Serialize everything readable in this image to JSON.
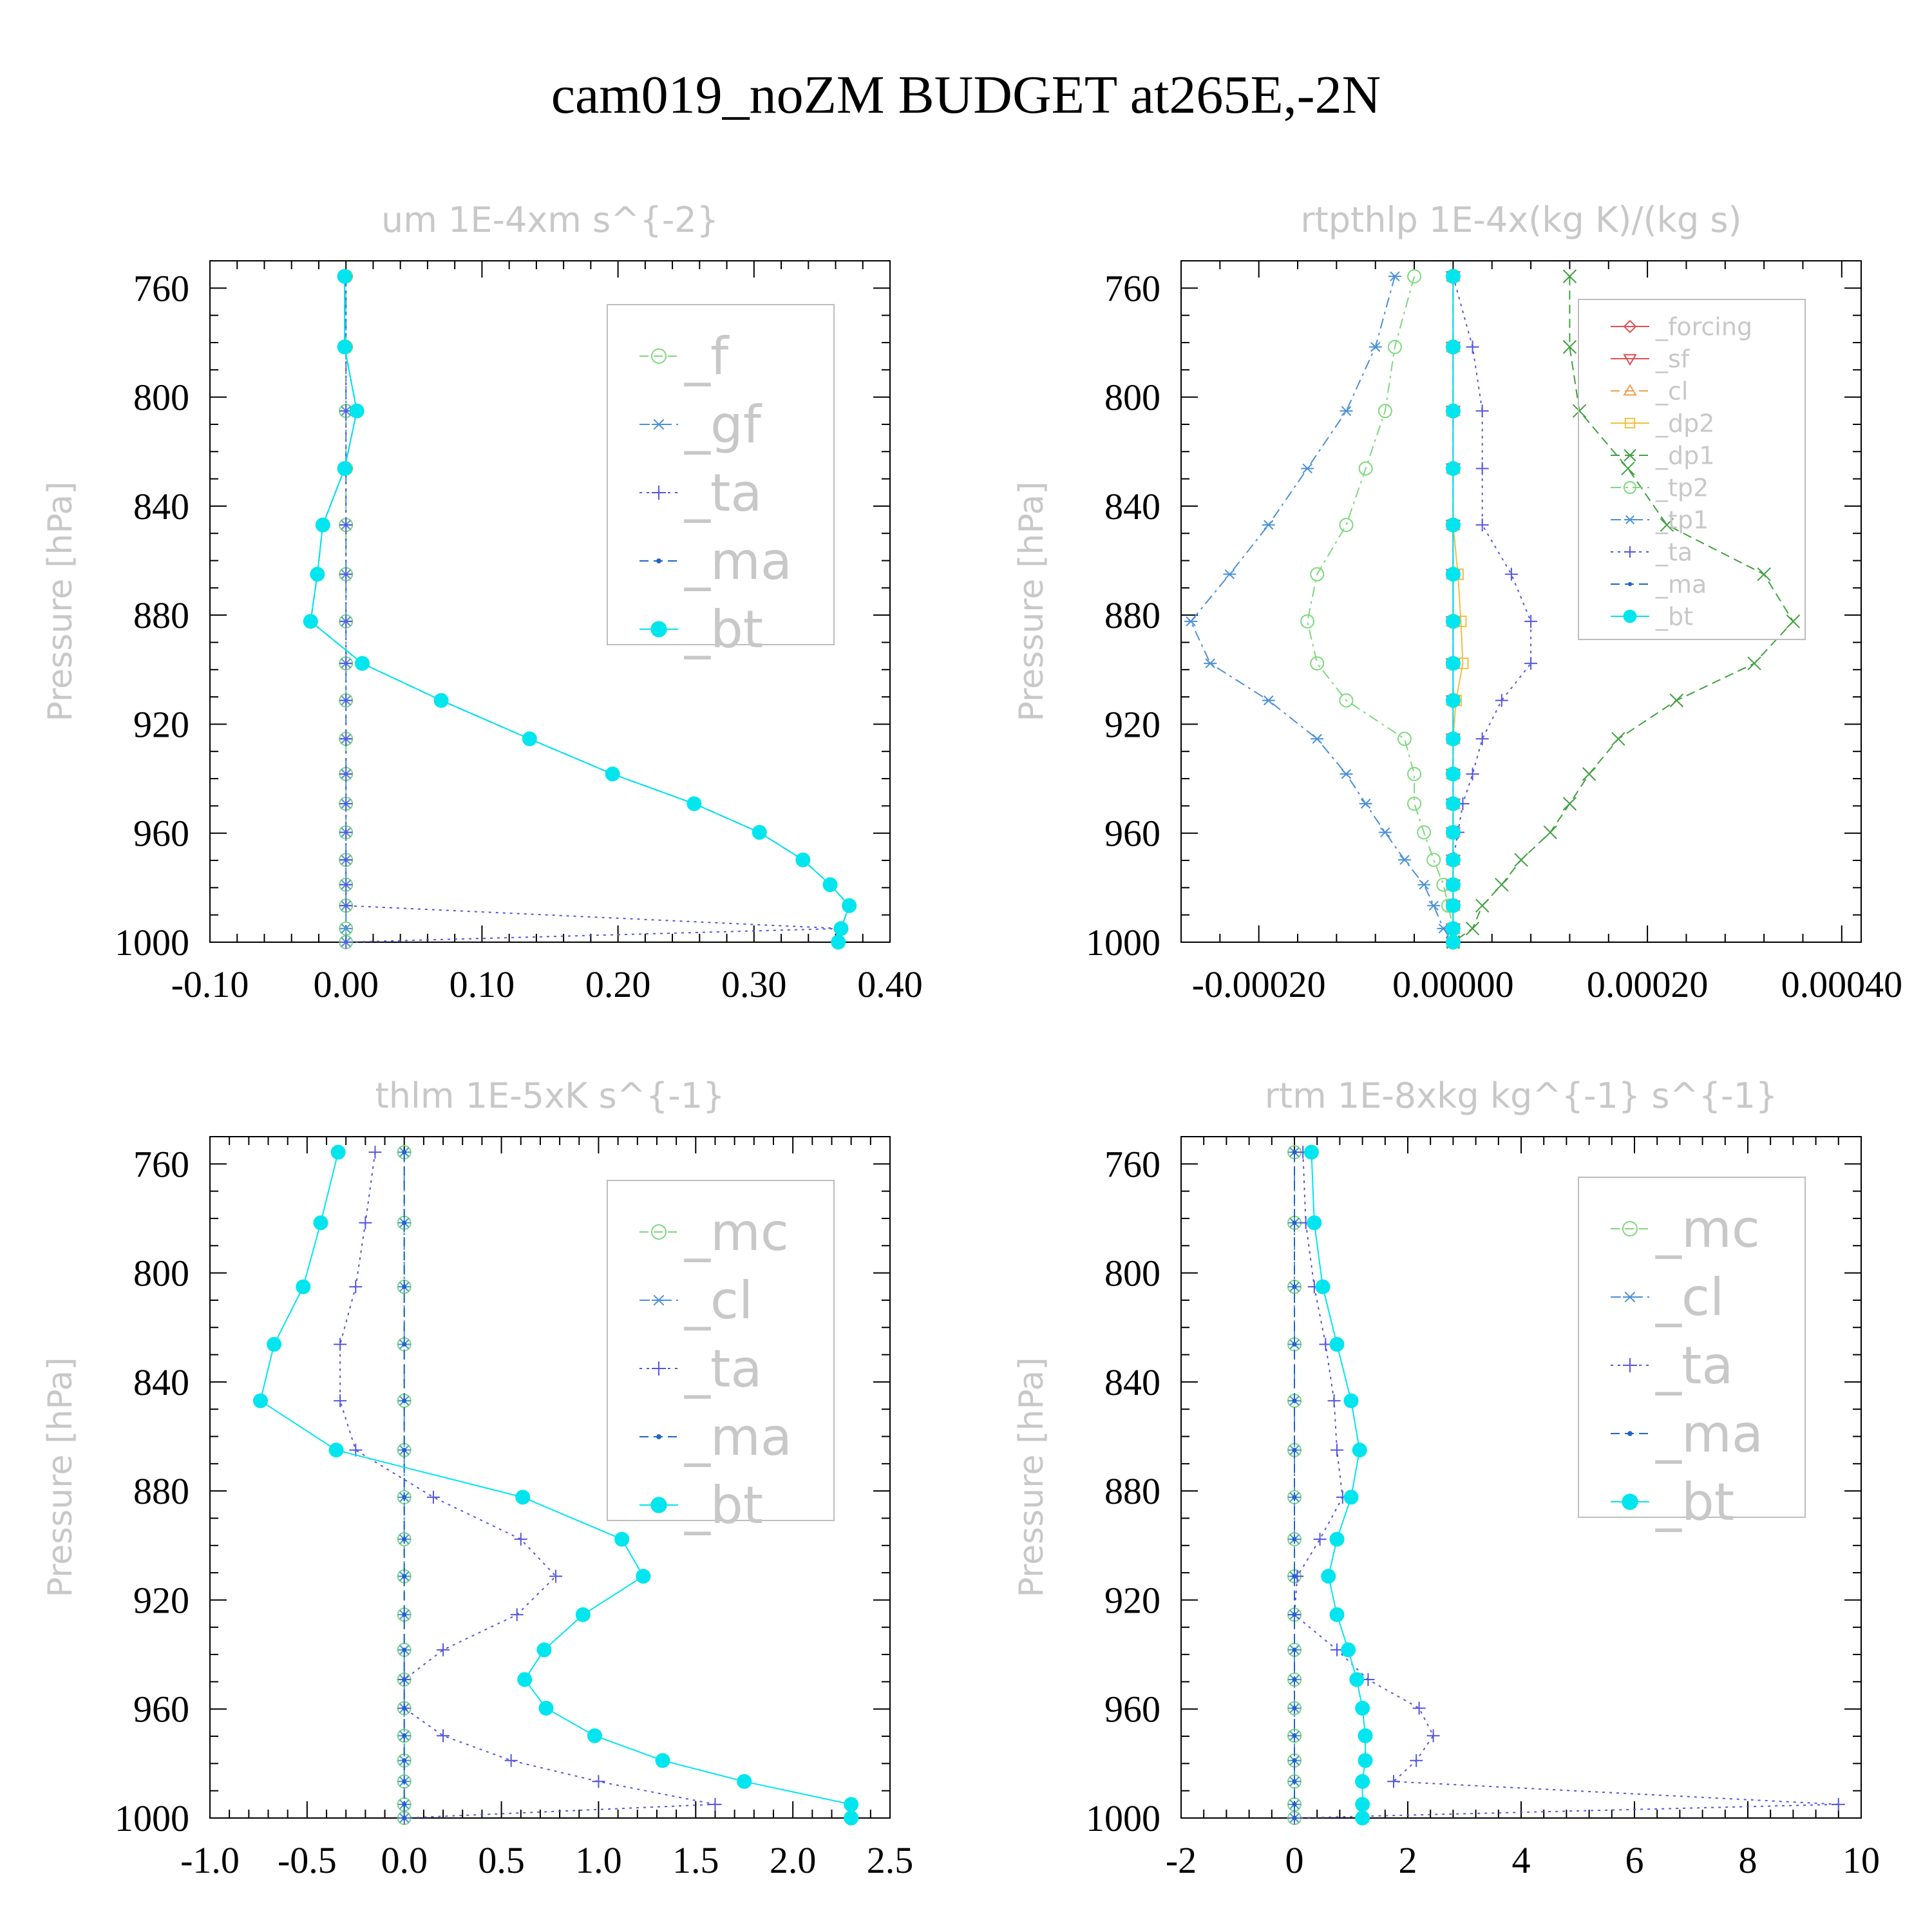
{
  "title": "cam019_noZM  BUDGET at265E,-2N",
  "chart_data": [
    {
      "type": "line",
      "title": "um  1E-4xm s^{-2}",
      "ylabel": "Pressure [hPa]",
      "xlim": [
        -0.1,
        0.4
      ],
      "ylim": [
        750,
        1000
      ],
      "y_reversed": true,
      "xticks": [
        "-0.10",
        "0.00",
        "0.10",
        "0.20",
        "0.30",
        "0.40"
      ],
      "xtick_values": [
        -0.1,
        0.0,
        0.1,
        0.2,
        0.3,
        0.4
      ],
      "yticks": [
        "760",
        "800",
        "840",
        "880",
        "920",
        "960",
        "1000"
      ],
      "ytick_values": [
        760,
        800,
        840,
        880,
        920,
        960,
        1000
      ],
      "legend": "top-right",
      "y": [
        755.7,
        781.6,
        805.1,
        826.2,
        846.9,
        865.0,
        882.3,
        897.7,
        911.3,
        925.4,
        938.3,
        949.2,
        959.7,
        969.8,
        978.9,
        986.6,
        995.0,
        1000.0
      ],
      "series": [
        {
          "name": "_f",
          "color": "#7cd97c",
          "marker": "circle-open",
          "dash": "dashed",
          "x": [
            0,
            0,
            0,
            0,
            0,
            0,
            0,
            0,
            0,
            0,
            0,
            0,
            0,
            0,
            0,
            0,
            0,
            0
          ]
        },
        {
          "name": "_gf",
          "color": "#4a90d9",
          "marker": "star",
          "dash": "dashdot",
          "x": [
            0,
            0,
            0,
            0,
            0,
            0,
            0,
            0,
            0,
            0,
            0,
            0,
            0,
            0,
            0,
            0,
            0,
            0
          ]
        },
        {
          "name": "_ta",
          "color": "#5555dd",
          "marker": "plus",
          "dash": "dotted",
          "x": [
            0,
            0,
            0,
            0,
            0,
            0,
            0,
            0,
            0,
            0,
            0,
            0,
            0,
            0,
            0,
            0,
            0.364,
            0.0
          ]
        },
        {
          "name": "_ma",
          "color": "#1e64c8",
          "marker": "dot",
          "dash": "dashed",
          "x": [
            -0.001,
            -0.001,
            0.008,
            -0.001,
            -0.017,
            -0.021,
            -0.026,
            0.012,
            0.07,
            0.135,
            0.196,
            0.256,
            0.304,
            0.336,
            0.356,
            0.37,
            0.364,
            0.362
          ]
        },
        {
          "name": "_bt",
          "color": "#00e5ee",
          "marker": "disc",
          "dash": "solid",
          "x": [
            -0.001,
            -0.001,
            0.008,
            -0.001,
            -0.017,
            -0.021,
            -0.026,
            0.012,
            0.07,
            0.135,
            0.196,
            0.256,
            0.304,
            0.336,
            0.356,
            0.37,
            0.364,
            0.362
          ]
        }
      ]
    },
    {
      "type": "line",
      "title": "rtpthlp  1E-4x(kg K)/(kg s)",
      "ylabel": "Pressure [hPa]",
      "xlim": [
        -0.00028,
        0.00042
      ],
      "ylim": [
        750,
        1000
      ],
      "y_reversed": true,
      "xticks": [
        "-0.00020",
        "0.00000",
        "0.00020",
        "0.00040"
      ],
      "xtick_values": [
        -0.0002,
        0.0,
        0.0002,
        0.0004
      ],
      "yticks": [
        "760",
        "800",
        "840",
        "880",
        "920",
        "960",
        "1000"
      ],
      "ytick_values": [
        760,
        800,
        840,
        880,
        920,
        960,
        1000
      ],
      "legend": "top-right",
      "y": [
        755.7,
        781.6,
        805.1,
        826.2,
        846.9,
        865.0,
        882.3,
        897.7,
        911.3,
        925.4,
        938.3,
        949.2,
        959.7,
        969.8,
        978.9,
        986.6,
        995.0,
        1000.0
      ],
      "series": [
        {
          "name": "_forcing",
          "color": "#e05050",
          "marker": "diamond-open",
          "dash": "solid",
          "x": [
            0,
            0,
            0,
            0,
            0,
            0,
            0,
            0,
            0,
            0,
            0,
            0,
            0,
            0,
            0,
            0,
            0,
            0
          ]
        },
        {
          "name": "_sf",
          "color": "#e05050",
          "marker": "tri-down",
          "dash": "solid",
          "x": [
            0,
            0,
            0,
            0,
            0,
            0,
            0,
            0,
            0,
            0,
            0,
            0,
            0,
            0,
            0,
            0,
            0,
            0
          ]
        },
        {
          "name": "_cl",
          "color": "#f0a050",
          "marker": "tri-up",
          "dash": "dashed",
          "x": [
            0,
            0,
            0,
            0,
            0,
            0,
            0,
            0,
            0,
            0,
            0,
            0,
            0,
            0,
            0,
            0,
            0,
            0
          ]
        },
        {
          "name": "_dp2",
          "color": "#f0c040",
          "marker": "square-open",
          "dash": "solid",
          "x": [
            0,
            0,
            0,
            0,
            0,
            5e-06,
            8e-06,
            1e-05,
            3e-06,
            0,
            0,
            0,
            0,
            0,
            0,
            0,
            0,
            0
          ]
        },
        {
          "name": "_dp1",
          "color": "#40a040",
          "marker": "x",
          "dash": "dashed",
          "x": [
            0.00012,
            0.00012,
            0.00013,
            0.00018,
            0.00022,
            0.00032,
            0.00035,
            0.00031,
            0.00023,
            0.00017,
            0.00014,
            0.00012,
            0.0001,
            7e-05,
            5e-05,
            3e-05,
            2e-05,
            0.0
          ]
        },
        {
          "name": "_tp2",
          "color": "#7cd97c",
          "marker": "circle-open",
          "dash": "dashdot",
          "x": [
            -4e-05,
            -6e-05,
            -7e-05,
            -9e-05,
            -0.00011,
            -0.00014,
            -0.00015,
            -0.00014,
            -0.00011,
            -5e-05,
            -4e-05,
            -4e-05,
            -3e-05,
            -2e-05,
            -1e-05,
            -5e-06,
            0,
            0
          ]
        },
        {
          "name": "_tp1",
          "color": "#4a90d9",
          "marker": "star",
          "dash": "dashdot",
          "x": [
            -6e-05,
            -8e-05,
            -0.00011,
            -0.00015,
            -0.00019,
            -0.00023,
            -0.00027,
            -0.00025,
            -0.00019,
            -0.00014,
            -0.00011,
            -9e-05,
            -7e-05,
            -5e-05,
            -3e-05,
            -2e-05,
            -1e-05,
            0
          ]
        },
        {
          "name": "_ta",
          "color": "#5555dd",
          "marker": "plus",
          "dash": "dotted",
          "x": [
            0,
            2e-05,
            3e-05,
            3e-05,
            3e-05,
            6e-05,
            8e-05,
            8e-05,
            5e-05,
            3e-05,
            2e-05,
            1e-05,
            5e-06,
            0,
            0,
            0,
            0,
            0
          ]
        },
        {
          "name": "_ma",
          "color": "#1e64c8",
          "marker": "dot",
          "dash": "dashed",
          "x": [
            0,
            0,
            0,
            0,
            0,
            0,
            0,
            0,
            0,
            0,
            0,
            0,
            0,
            0,
            0,
            0,
            0,
            0
          ]
        },
        {
          "name": "_bt",
          "color": "#00e5ee",
          "marker": "disc",
          "dash": "solid",
          "x": [
            0,
            0,
            0,
            0,
            0,
            0,
            0,
            0,
            0,
            0,
            0,
            0,
            0,
            0,
            0,
            0,
            0,
            0
          ]
        }
      ]
    },
    {
      "type": "line",
      "title": "thlm  1E-5xK s^{-1}",
      "ylabel": "Pressure [hPa]",
      "xlim": [
        -1.0,
        2.5
      ],
      "ylim": [
        750,
        1000
      ],
      "y_reversed": true,
      "xticks": [
        "-1.0",
        "-0.5",
        "0.0",
        "0.5",
        "1.0",
        "1.5",
        "2.0",
        "2.5"
      ],
      "xtick_values": [
        -1.0,
        -0.5,
        0.0,
        0.5,
        1.0,
        1.5,
        2.0,
        2.5
      ],
      "yticks": [
        "760",
        "800",
        "840",
        "880",
        "920",
        "960",
        "1000"
      ],
      "ytick_values": [
        760,
        800,
        840,
        880,
        920,
        960,
        1000
      ],
      "legend": "top-right",
      "y": [
        755.7,
        781.6,
        805.1,
        826.2,
        846.9,
        865.0,
        882.3,
        897.7,
        911.3,
        925.4,
        938.3,
        949.2,
        959.7,
        969.8,
        978.9,
        986.6,
        995.0,
        1000.0
      ],
      "series": [
        {
          "name": "_mc",
          "color": "#7cd97c",
          "marker": "circle-open",
          "dash": "dashed",
          "x": [
            0,
            0,
            0,
            0,
            0,
            0,
            0,
            0,
            0,
            0,
            0,
            0,
            0,
            0,
            0,
            0,
            0,
            0
          ]
        },
        {
          "name": "_cl",
          "color": "#4a90d9",
          "marker": "star",
          "dash": "dashdot",
          "x": [
            0,
            0,
            0,
            0,
            0,
            0,
            0,
            0,
            0,
            0,
            0,
            0,
            0,
            0,
            0,
            0,
            0,
            0
          ]
        },
        {
          "name": "_ta",
          "color": "#5555dd",
          "marker": "plus",
          "dash": "dotted",
          "x": [
            -0.15,
            -0.2,
            -0.25,
            -0.33,
            -0.33,
            -0.25,
            0.15,
            0.6,
            0.78,
            0.58,
            0.2,
            0.0,
            0.0,
            0.2,
            0.55,
            1.0,
            1.6,
            0.0
          ]
        },
        {
          "name": "_ma",
          "color": "#1e64c8",
          "marker": "dot",
          "dash": "dashed",
          "x": [
            0,
            0,
            0,
            0,
            0,
            0,
            0,
            0,
            0,
            0,
            0,
            0,
            0,
            0,
            0,
            0,
            0,
            0
          ]
        },
        {
          "name": "_bt",
          "color": "#00e5ee",
          "marker": "disc",
          "dash": "solid",
          "x": [
            -0.34,
            -0.43,
            -0.52,
            -0.67,
            -0.74,
            -0.35,
            0.61,
            1.12,
            1.23,
            0.92,
            0.72,
            0.62,
            0.73,
            0.98,
            1.33,
            1.75,
            2.3,
            2.3
          ]
        }
      ]
    },
    {
      "type": "line",
      "title": "rtm  1E-8xkg kg^{-1} s^{-1}",
      "ylabel": "Pressure [hPa]",
      "xlim": [
        -2,
        10
      ],
      "ylim": [
        750,
        1000
      ],
      "y_reversed": true,
      "xticks": [
        "-2",
        "0",
        "2",
        "4",
        "6",
        "8",
        "10"
      ],
      "xtick_values": [
        -2,
        0,
        2,
        4,
        6,
        8,
        10
      ],
      "yticks": [
        "760",
        "800",
        "840",
        "880",
        "920",
        "960",
        "1000"
      ],
      "ytick_values": [
        760,
        800,
        840,
        880,
        920,
        960,
        1000
      ],
      "legend": "top-right",
      "y": [
        755.7,
        781.6,
        805.1,
        826.2,
        846.9,
        865.0,
        882.3,
        897.7,
        911.3,
        925.4,
        938.3,
        949.2,
        959.7,
        969.8,
        978.9,
        986.6,
        995.0,
        1000.0
      ],
      "series": [
        {
          "name": "_mc",
          "color": "#7cd97c",
          "marker": "circle-open",
          "dash": "dashed",
          "x": [
            0,
            0,
            0,
            0,
            0,
            0,
            0,
            0,
            0,
            0,
            0,
            0,
            0,
            0,
            0,
            0,
            0,
            0
          ]
        },
        {
          "name": "_cl",
          "color": "#4a90d9",
          "marker": "star",
          "dash": "dashdot",
          "x": [
            0,
            0,
            0,
            0,
            0,
            0,
            0,
            0,
            0,
            0,
            0,
            0,
            0,
            0,
            0,
            0,
            0,
            0
          ]
        },
        {
          "name": "_ta",
          "color": "#5555dd",
          "marker": "plus",
          "dash": "dotted",
          "x": [
            0.15,
            0.2,
            0.35,
            0.55,
            0.7,
            0.75,
            0.85,
            0.45,
            0.05,
            0.0,
            0.75,
            1.3,
            2.2,
            2.45,
            2.15,
            1.75,
            9.6,
            0.0
          ]
        },
        {
          "name": "_ma",
          "color": "#1e64c8",
          "marker": "dot",
          "dash": "dashed",
          "x": [
            0,
            0,
            0,
            0,
            0,
            0,
            0,
            0,
            0,
            0,
            0,
            0,
            0,
            0,
            0,
            0,
            0,
            0
          ]
        },
        {
          "name": "_bt",
          "color": "#00e5ee",
          "marker": "disc",
          "dash": "solid",
          "x": [
            0.3,
            0.35,
            0.5,
            0.75,
            1.0,
            1.15,
            1.0,
            0.75,
            0.6,
            0.75,
            0.95,
            1.1,
            1.2,
            1.25,
            1.25,
            1.2,
            1.2,
            1.2
          ]
        }
      ]
    }
  ]
}
